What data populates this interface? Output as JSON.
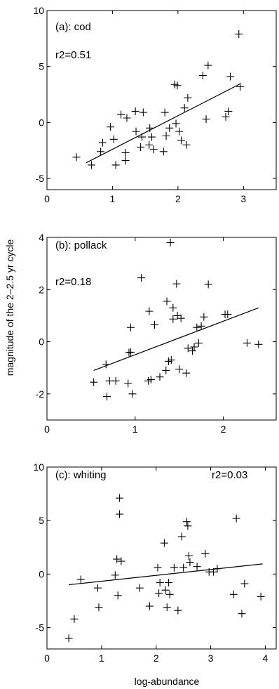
{
  "figure": {
    "ylabel": "magnitude of the 2–2.5 yr cycle",
    "xlabel": "log-abundance"
  },
  "chart_data": [
    {
      "type": "scatter",
      "panel": "a",
      "title": "(a): cod",
      "r2": "r2=0.51",
      "xlim": [
        0,
        3.5
      ],
      "ylim": [
        -6,
        10
      ],
      "xticks": [
        0,
        1,
        2,
        3
      ],
      "yticks": [
        -5,
        0,
        5,
        10
      ],
      "points": [
        [
          0.45,
          -3.1
        ],
        [
          0.68,
          -3.8
        ],
        [
          0.82,
          -2.6
        ],
        [
          0.85,
          -1.8
        ],
        [
          0.97,
          -0.4
        ],
        [
          1.02,
          -1.5
        ],
        [
          1.05,
          -3.8
        ],
        [
          1.13,
          0.7
        ],
        [
          1.2,
          -3.4
        ],
        [
          1.2,
          -2.7
        ],
        [
          1.22,
          0.4
        ],
        [
          1.35,
          1.0
        ],
        [
          1.36,
          -0.8
        ],
        [
          1.43,
          -2.2
        ],
        [
          1.45,
          -1.3
        ],
        [
          1.47,
          0.9
        ],
        [
          1.56,
          -2.0
        ],
        [
          1.57,
          -0.5
        ],
        [
          1.6,
          -1.3
        ],
        [
          1.63,
          -2.4
        ],
        [
          1.78,
          -2.6
        ],
        [
          1.8,
          0.9
        ],
        [
          1.82,
          -1.2
        ],
        [
          1.87,
          -0.5
        ],
        [
          1.95,
          3.4
        ],
        [
          1.97,
          -0.1
        ],
        [
          1.99,
          3.3
        ],
        [
          2.02,
          -0.8
        ],
        [
          2.05,
          -1.6
        ],
        [
          2.1,
          1.3
        ],
        [
          2.13,
          -2.0
        ],
        [
          2.15,
          2.2
        ],
        [
          2.38,
          4.2
        ],
        [
          2.43,
          0.3
        ],
        [
          2.46,
          5.1
        ],
        [
          2.73,
          0.5
        ],
        [
          2.77,
          1.0
        ],
        [
          2.8,
          4.1
        ],
        [
          2.93,
          7.9
        ],
        [
          2.95,
          3.2
        ]
      ],
      "fit": {
        "x": [
          0.6,
          2.95
        ],
        "y": [
          -3.6,
          3.45
        ]
      }
    },
    {
      "type": "scatter",
      "panel": "b",
      "title": "(b): pollack",
      "r2": "r2=0.18",
      "xlim": [
        0,
        2.6
      ],
      "ylim": [
        -3,
        4
      ],
      "xticks": [
        0,
        1,
        2
      ],
      "yticks": [
        -2,
        0,
        2,
        4
      ],
      "points": [
        [
          0.53,
          -1.55
        ],
        [
          0.67,
          -0.87
        ],
        [
          0.68,
          -2.1
        ],
        [
          0.71,
          -1.5
        ],
        [
          0.78,
          -1.5
        ],
        [
          0.92,
          -1.6
        ],
        [
          0.93,
          -0.42
        ],
        [
          0.95,
          -0.4
        ],
        [
          0.95,
          0.55
        ],
        [
          0.97,
          -2.0
        ],
        [
          1.07,
          2.45
        ],
        [
          1.15,
          -1.5
        ],
        [
          1.16,
          1.17
        ],
        [
          1.18,
          -1.45
        ],
        [
          1.22,
          0.65
        ],
        [
          1.28,
          -1.35
        ],
        [
          1.35,
          -1.1
        ],
        [
          1.36,
          1.55
        ],
        [
          1.38,
          -0.75
        ],
        [
          1.4,
          3.8
        ],
        [
          1.41,
          -0.7
        ],
        [
          1.43,
          1.3
        ],
        [
          1.43,
          0.87
        ],
        [
          1.47,
          2.22
        ],
        [
          1.48,
          1.0
        ],
        [
          1.5,
          -1.05
        ],
        [
          1.52,
          0.9
        ],
        [
          1.58,
          -1.2
        ],
        [
          1.6,
          -0.25
        ],
        [
          1.65,
          -0.35
        ],
        [
          1.67,
          -0.2
        ],
        [
          1.7,
          0.55
        ],
        [
          1.72,
          -0.05
        ],
        [
          1.75,
          0.6
        ],
        [
          1.78,
          0.95
        ],
        [
          1.83,
          2.2
        ],
        [
          2.02,
          1.05
        ],
        [
          2.05,
          1.05
        ],
        [
          2.27,
          -0.05
        ],
        [
          2.4,
          -0.1
        ]
      ],
      "fit": {
        "x": [
          0.53,
          2.4
        ],
        "y": [
          -1.1,
          1.3
        ]
      }
    },
    {
      "type": "scatter",
      "panel": "c",
      "title": "(c): whiting",
      "r2": "r2=0.03",
      "xlim": [
        0,
        4.2
      ],
      "ylim": [
        -7,
        10
      ],
      "xticks": [
        0,
        1,
        2,
        3,
        4
      ],
      "yticks": [
        -5,
        0,
        5,
        10
      ],
      "points": [
        [
          0.4,
          -6.0
        ],
        [
          0.5,
          -4.2
        ],
        [
          0.62,
          -0.5
        ],
        [
          0.93,
          -1.3
        ],
        [
          0.95,
          -3.1
        ],
        [
          1.25,
          -0.1
        ],
        [
          1.28,
          1.4
        ],
        [
          1.3,
          -2.0
        ],
        [
          1.33,
          7.1
        ],
        [
          1.33,
          5.6
        ],
        [
          1.36,
          1.2
        ],
        [
          1.7,
          -1.3
        ],
        [
          1.88,
          -3.0
        ],
        [
          2.03,
          0.6
        ],
        [
          2.05,
          -1.8
        ],
        [
          2.07,
          -0.8
        ],
        [
          2.15,
          2.9
        ],
        [
          2.17,
          -1.5
        ],
        [
          2.2,
          -3.1
        ],
        [
          2.23,
          -0.8
        ],
        [
          2.25,
          -1.9
        ],
        [
          2.33,
          0.6
        ],
        [
          2.4,
          -3.4
        ],
        [
          2.47,
          3.5
        ],
        [
          2.5,
          0.6
        ],
        [
          2.56,
          4.9
        ],
        [
          2.58,
          4.5
        ],
        [
          2.6,
          1.7
        ],
        [
          2.62,
          1.1
        ],
        [
          2.75,
          0.7
        ],
        [
          2.9,
          1.9
        ],
        [
          2.97,
          0.2
        ],
        [
          3.05,
          0.2
        ],
        [
          3.12,
          0.5
        ],
        [
          3.42,
          -1.9
        ],
        [
          3.47,
          5.2
        ],
        [
          3.57,
          -3.7
        ],
        [
          3.62,
          -0.9
        ],
        [
          3.92,
          -2.1
        ]
      ],
      "fit": {
        "x": [
          0.4,
          3.95
        ],
        "y": [
          -1.0,
          0.95
        ]
      }
    }
  ]
}
